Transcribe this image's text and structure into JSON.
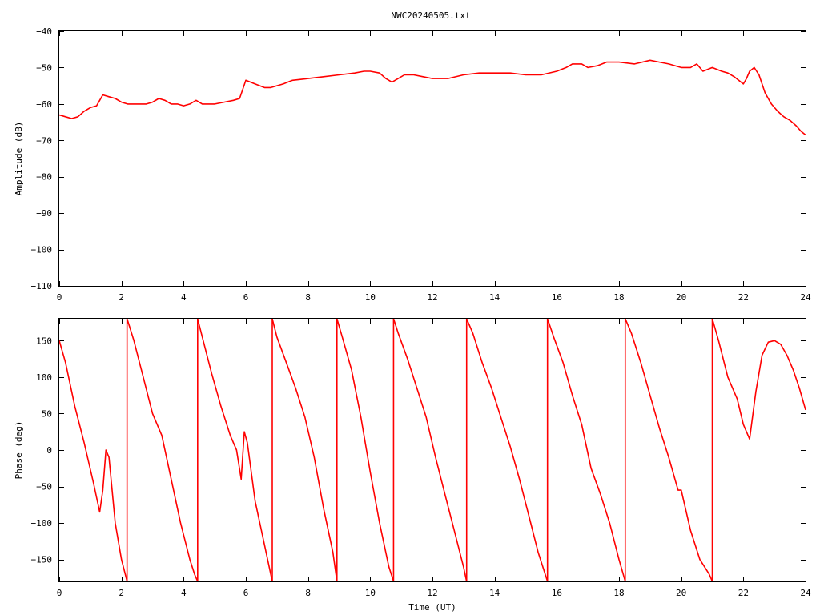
{
  "chart_data": [
    {
      "type": "line",
      "title": "NWC20240505.txt",
      "xlabel": "",
      "ylabel": "Amplitude (dB)",
      "xlim": [
        0,
        24
      ],
      "ylim": [
        -110,
        -40
      ],
      "x_ticks": [
        0,
        2,
        4,
        6,
        8,
        10,
        12,
        14,
        16,
        18,
        20,
        22,
        24
      ],
      "y_ticks": [
        -110,
        -100,
        -90,
        -80,
        -70,
        -60,
        -50,
        -40
      ],
      "x_tick_labels": [
        "0",
        "2",
        "4",
        "6",
        "8",
        "10",
        "12",
        "14",
        "16",
        "18",
        "20",
        "22",
        "24"
      ],
      "y_tick_labels": [
        "−110",
        "−100",
        "−90",
        "−80",
        "−70",
        "−60",
        "−50",
        "−40"
      ],
      "grid": false,
      "legend": "none",
      "color": "#ff0000",
      "series": [
        {
          "x": [
            0,
            0.2,
            0.4,
            0.6,
            0.8,
            1.0,
            1.2,
            1.3,
            1.4,
            1.6,
            1.8,
            2.0,
            2.2,
            2.5,
            2.8,
            3.0,
            3.2,
            3.4,
            3.6,
            3.8,
            4.0,
            4.2,
            4.4,
            4.6,
            4.8,
            5.0,
            5.3,
            5.6,
            5.8,
            5.9,
            6.0,
            6.3,
            6.6,
            6.8,
            7.0,
            7.2,
            7.5,
            8.0,
            8.5,
            9.0,
            9.5,
            9.8,
            10.0,
            10.3,
            10.5,
            10.7,
            10.9,
            11.1,
            11.4,
            11.7,
            12.0,
            12.5,
            13.0,
            13.5,
            14.0,
            14.5,
            15.0,
            15.5,
            16.0,
            16.3,
            16.5,
            16.8,
            17.0,
            17.3,
            17.6,
            18.0,
            18.5,
            19.0,
            19.3,
            19.6,
            20.0,
            20.3,
            20.5,
            20.7,
            21.0,
            21.3,
            21.5,
            21.7,
            22.0,
            22.1,
            22.2,
            22.35,
            22.5,
            22.7,
            22.9,
            23.1,
            23.3,
            23.5,
            23.7,
            23.85,
            24.0
          ],
          "y": [
            -63,
            -63.5,
            -64,
            -63.5,
            -62,
            -61,
            -60.5,
            -59,
            -57.5,
            -58,
            -58.5,
            -59.5,
            -60,
            -60,
            -60,
            -59.5,
            -58.5,
            -59,
            -60,
            -60,
            -60.5,
            -60,
            -59,
            -60,
            -60,
            -60,
            -59.5,
            -59,
            -58.5,
            -56,
            -53.5,
            -54.5,
            -55.5,
            -55.5,
            -55,
            -54.5,
            -53.5,
            -53,
            -52.5,
            -52,
            -51.5,
            -51,
            -51,
            -51.5,
            -53,
            -54,
            -53,
            -52,
            -52,
            -52.5,
            -53,
            -53,
            -52,
            -51.5,
            -51.5,
            -51.5,
            -52,
            -52,
            -51,
            -50,
            -49,
            -49,
            -50,
            -49.5,
            -48.5,
            -48.5,
            -49,
            -48,
            -48.5,
            -49,
            -50,
            -50,
            -49,
            -51,
            -50,
            -51,
            -51.5,
            -52.5,
            -54.5,
            -53,
            -51,
            -50,
            -52,
            -57,
            -60,
            -62,
            -63.5,
            -64.5,
            -66,
            -67.5,
            -68.5
          ]
        }
      ]
    },
    {
      "type": "line",
      "title": "",
      "xlabel": "Time (UT)",
      "ylabel": "Phase (deg)",
      "xlim": [
        0,
        24
      ],
      "ylim": [
        -180,
        180
      ],
      "x_ticks": [
        0,
        2,
        4,
        6,
        8,
        10,
        12,
        14,
        16,
        18,
        20,
        22,
        24
      ],
      "y_ticks": [
        -150,
        -100,
        -50,
        0,
        50,
        100,
        150
      ],
      "x_tick_labels": [
        "0",
        "2",
        "4",
        "6",
        "8",
        "10",
        "12",
        "14",
        "16",
        "18",
        "20",
        "22",
        "24"
      ],
      "y_tick_labels": [
        "−150",
        "−100",
        "−50",
        "0",
        "50",
        "100",
        "150"
      ],
      "grid": false,
      "legend": "none",
      "color": "#ff0000",
      "series": [
        {
          "x": [
            0,
            0.2,
            0.5,
            0.8,
            1.1,
            1.3,
            1.4,
            1.5,
            1.6,
            1.8,
            2.0,
            2.18
          ],
          "y": [
            150,
            120,
            60,
            10,
            -45,
            -85,
            -55,
            0,
            -10,
            -100,
            -150,
            -180
          ]
        },
        {
          "x": [
            2.18,
            2.4,
            2.7,
            3.0,
            3.3,
            3.6,
            3.9,
            4.2,
            4.35,
            4.45
          ],
          "y": [
            180,
            150,
            100,
            50,
            20,
            -40,
            -100,
            -150,
            -170,
            -180
          ]
        },
        {
          "x": [
            4.45,
            4.6,
            4.9,
            5.2,
            5.5,
            5.7,
            5.85,
            5.95,
            6.05,
            6.3,
            6.6,
            6.85
          ],
          "y": [
            180,
            155,
            105,
            60,
            20,
            0,
            -40,
            25,
            10,
            -70,
            -130,
            -180
          ]
        },
        {
          "x": [
            6.85,
            7.0,
            7.3,
            7.6,
            7.9,
            8.2,
            8.5,
            8.8,
            8.93
          ],
          "y": [
            180,
            155,
            120,
            85,
            45,
            -10,
            -80,
            -140,
            -180
          ]
        },
        {
          "x": [
            8.93,
            9.1,
            9.4,
            9.7,
            10.0,
            10.3,
            10.6,
            10.75
          ],
          "y": [
            180,
            155,
            110,
            45,
            -30,
            -100,
            -160,
            -180
          ]
        },
        {
          "x": [
            10.75,
            10.9,
            11.2,
            11.5,
            11.8,
            12.1,
            12.4,
            12.7,
            13.0,
            13.1
          ],
          "y": [
            180,
            160,
            125,
            85,
            45,
            -10,
            -60,
            -110,
            -160,
            -180
          ]
        },
        {
          "x": [
            13.1,
            13.3,
            13.6,
            13.9,
            14.2,
            14.5,
            14.8,
            15.1,
            15.4,
            15.7
          ],
          "y": [
            180,
            160,
            120,
            85,
            45,
            5,
            -40,
            -90,
            -140,
            -180
          ]
        },
        {
          "x": [
            15.7,
            15.9,
            16.2,
            16.5,
            16.8,
            17.1,
            17.4,
            17.7,
            18.0,
            18.2
          ],
          "y": [
            180,
            155,
            120,
            75,
            35,
            -25,
            -60,
            -100,
            -150,
            -180
          ]
        },
        {
          "x": [
            18.2,
            18.4,
            18.7,
            19.0,
            19.3,
            19.6,
            19.9,
            20.0,
            20.3,
            20.6,
            20.9,
            21.0
          ],
          "y": [
            180,
            160,
            120,
            75,
            30,
            -10,
            -55,
            -55,
            -110,
            -150,
            -170,
            -180
          ]
        },
        {
          "x": [
            21.0,
            21.2,
            21.5,
            21.8,
            22.0,
            22.2,
            22.4,
            22.6,
            22.8,
            23.0,
            23.2,
            23.4,
            23.6,
            23.8,
            24.0
          ],
          "y": [
            180,
            150,
            100,
            70,
            35,
            15,
            80,
            130,
            148,
            150,
            145,
            130,
            110,
            85,
            55
          ]
        }
      ]
    }
  ]
}
